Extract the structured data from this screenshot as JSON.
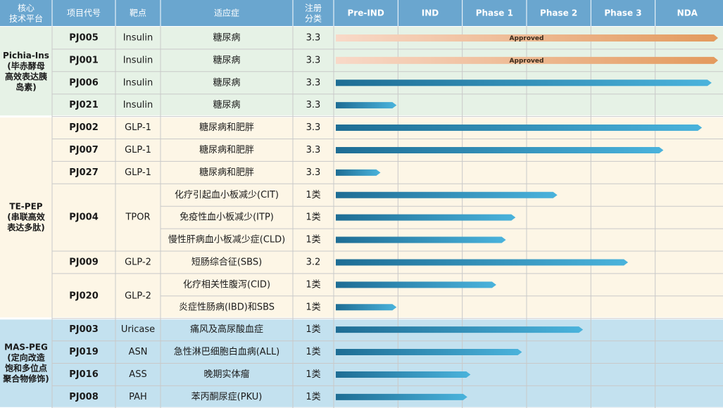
{
  "header": {
    "platform": [
      "核心",
      "技术平台"
    ],
    "code": "项目代号",
    "target": "靶点",
    "indication": "适应症",
    "reg_class": [
      "注册",
      "分类"
    ]
  },
  "stages": [
    "Pre-IND",
    "IND",
    "Phase 1",
    "Phase 2",
    "Phase 3",
    "NDA"
  ],
  "colors": {
    "header_bg": "#6aa6cf",
    "header_text": "#ffffff",
    "group1_bg": "#e6f2e6",
    "group2_bg": "#fdf6e6",
    "group3_bg": "#c3e1ef",
    "bar_blue_dark": "#1e6d94",
    "bar_blue_light": "#4ab3dc",
    "approved_light": "#f8d9c8",
    "approved_dark": "#e39a5d",
    "grid": "#c9c9c9",
    "text": "#1a1a1a"
  },
  "groups": [
    {
      "name": "Pichia-Ins",
      "desc": [
        "(毕赤酵母",
        "高效表达胰",
        "岛素)"
      ],
      "bg_key": "group1_bg",
      "projects": [
        {
          "code": "PJ005",
          "target": "Insulin",
          "indications": [
            "糖尿病"
          ],
          "reg_class": "3.3"
        },
        {
          "code": "PJ001",
          "target": "Insulin",
          "indications": [
            "糖尿病"
          ],
          "reg_class": "3.3"
        },
        {
          "code": "PJ006",
          "target": "Insulin",
          "indications": [
            "糖尿病"
          ],
          "reg_class": "3.3"
        },
        {
          "code": "PJ021",
          "target": "Insulin",
          "indications": [
            "糖尿病"
          ],
          "reg_class": "3.3"
        }
      ]
    },
    {
      "name": "TE-PEP",
      "desc": [
        "(串联高效",
        "表达多肽)"
      ],
      "bg_key": "group2_bg",
      "projects": [
        {
          "code": "PJ002",
          "target": "GLP-1",
          "indications": [
            "糖尿病和肥胖"
          ],
          "reg_class": "3.3"
        },
        {
          "code": "PJ007",
          "target": "GLP-1",
          "indications": [
            "糖尿病和肥胖"
          ],
          "reg_class": "3.3"
        },
        {
          "code": "PJ027",
          "target": "GLP-1",
          "indications": [
            "糖尿病和肥胖"
          ],
          "reg_class": "3.3"
        },
        {
          "code": "PJ004",
          "target": "TPOR",
          "indications": [
            "化疗引起血小板减少(CIT)",
            "免疫性血小板减少(ITP)",
            "慢性肝病血小板减少症(CLD)"
          ],
          "reg_class": "1类"
        },
        {
          "code": "PJ009",
          "target": "GLP-2",
          "indications": [
            "短肠综合征(SBS)"
          ],
          "reg_class": "3.2"
        },
        {
          "code": "PJ020",
          "target": "GLP-2",
          "indications": [
            "化疗相关性腹泻(CID)",
            "炎症性肠病(IBD)和SBS"
          ],
          "reg_class": "1类"
        }
      ]
    },
    {
      "name": "MAS-PEG",
      "desc": [
        "(定向改造",
        "饱和多位点",
        "聚合物修饰)"
      ],
      "bg_key": "group3_bg",
      "projects": [
        {
          "code": "PJ003",
          "target": "Uricase",
          "indications": [
            "痛风及高尿酸血症"
          ],
          "reg_class": "1类"
        },
        {
          "code": "PJ019",
          "target": "ASN",
          "indications": [
            "急性淋巴细胞白血病(ALL)"
          ],
          "reg_class": "1类"
        },
        {
          "code": "PJ016",
          "target": "ASS",
          "indications": [
            "晚期实体瘤"
          ],
          "reg_class": "1类"
        },
        {
          "code": "PJ008",
          "target": "PAH",
          "indications": [
            "苯丙酮尿症(PKU)"
          ],
          "reg_class": "1类"
        }
      ]
    }
  ],
  "chart_data": {
    "type": "bar",
    "orientation": "horizontal",
    "x_categories": [
      "Pre-IND",
      "IND",
      "Phase 1",
      "Phase 2",
      "Phase 3",
      "NDA"
    ],
    "xlim": [
      0,
      6
    ],
    "rows": [
      {
        "code": "PJ005",
        "indication": "糖尿病",
        "progress": 6.0,
        "status": "Approved"
      },
      {
        "code": "PJ001",
        "indication": "糖尿病",
        "progress": 6.0,
        "status": "Approved"
      },
      {
        "code": "PJ006",
        "indication": "糖尿病",
        "progress": 5.9,
        "status": ""
      },
      {
        "code": "PJ021",
        "indication": "糖尿病",
        "progress": 1.0,
        "status": ""
      },
      {
        "code": "PJ002",
        "indication": "糖尿病和肥胖",
        "progress": 5.75,
        "status": ""
      },
      {
        "code": "PJ007",
        "indication": "糖尿病和肥胖",
        "progress": 5.15,
        "status": ""
      },
      {
        "code": "PJ027",
        "indication": "糖尿病和肥胖",
        "progress": 0.75,
        "status": ""
      },
      {
        "code": "PJ004",
        "indication": "化疗引起血小板减少(CIT)",
        "progress": 3.5,
        "status": ""
      },
      {
        "code": "PJ004",
        "indication": "免疫性血小板减少(ITP)",
        "progress": 2.85,
        "status": ""
      },
      {
        "code": "PJ004",
        "indication": "慢性肝病血小板减少症(CLD)",
        "progress": 2.7,
        "status": ""
      },
      {
        "code": "PJ009",
        "indication": "短肠综合征(SBS)",
        "progress": 4.6,
        "status": ""
      },
      {
        "code": "PJ020",
        "indication": "化疗相关性腹泻(CID)",
        "progress": 2.55,
        "status": ""
      },
      {
        "code": "PJ020",
        "indication": "炎症性肠病(IBD)和SBS",
        "progress": 1.0,
        "status": ""
      },
      {
        "code": "PJ003",
        "indication": "痛风及高尿酸血症",
        "progress": 3.9,
        "status": ""
      },
      {
        "code": "PJ019",
        "indication": "急性淋巴细胞白血病(ALL)",
        "progress": 2.95,
        "status": ""
      },
      {
        "code": "PJ016",
        "indication": "晚期实体瘤",
        "progress": 2.15,
        "status": ""
      },
      {
        "code": "PJ008",
        "indication": "苯丙酮尿症(PKU)",
        "progress": 2.1,
        "status": ""
      }
    ]
  }
}
